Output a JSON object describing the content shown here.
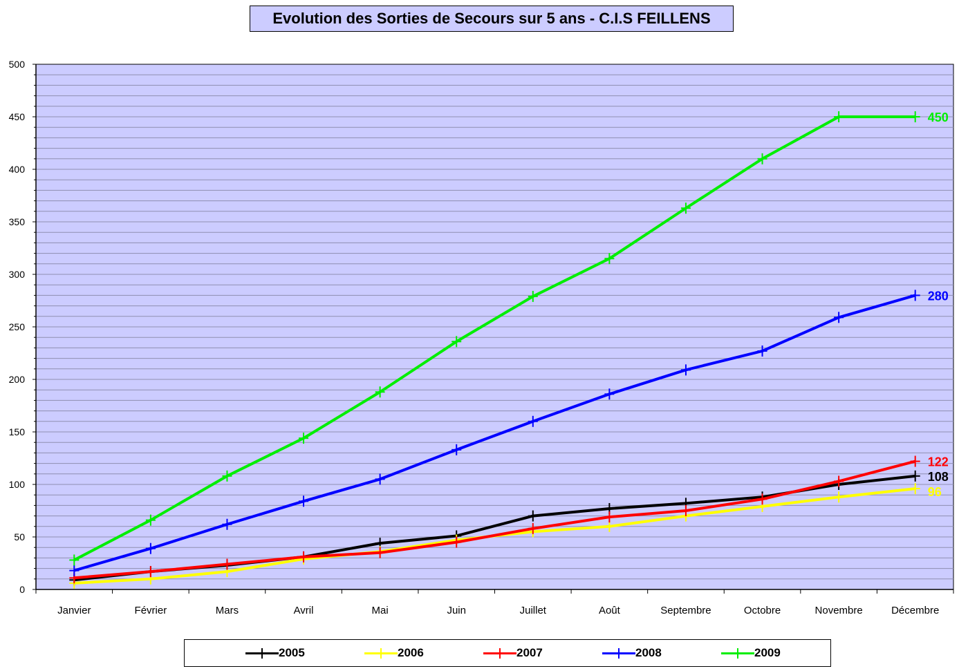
{
  "chart_data": {
    "type": "line",
    "title": "Evolution des Sorties de Secours sur 5 ans - C.I.S FEILLENS",
    "xlabel": "",
    "ylabel": "",
    "ylim": [
      0,
      500
    ],
    "y_ticks": [
      "0",
      "50",
      "100",
      "150",
      "200",
      "250",
      "300",
      "350",
      "400",
      "450",
      "500"
    ],
    "categories": [
      "Janvier",
      "Février",
      "Mars",
      "Avril",
      "Mai",
      "Juin",
      "Juillet",
      "Août",
      "Septembre",
      "Octobre",
      "Novembre",
      "Décembre"
    ],
    "grid": true,
    "legend_position": "bottom",
    "plot_background": "#ccccff",
    "series": [
      {
        "name": "2005",
        "color": "#000000",
        "values": [
          9,
          17,
          23,
          31,
          44,
          51,
          70,
          77,
          82,
          88,
          100,
          108
        ],
        "end_label": "108"
      },
      {
        "name": "2006",
        "color": "#ffff00",
        "values": [
          6,
          10,
          17,
          29,
          36,
          47,
          55,
          60,
          70,
          79,
          88,
          96
        ],
        "end_label": "96"
      },
      {
        "name": "2007",
        "color": "#ff0000",
        "values": [
          11,
          17,
          24,
          31,
          35,
          45,
          58,
          69,
          75,
          86,
          103,
          122
        ],
        "end_label": "122"
      },
      {
        "name": "2008",
        "color": "#0000ff",
        "values": [
          18,
          39,
          62,
          84,
          105,
          133,
          160,
          186,
          209,
          227,
          259,
          280
        ],
        "end_label": "280"
      },
      {
        "name": "2009",
        "color": "#00ee00",
        "values": [
          28,
          66,
          108,
          144,
          188,
          236,
          279,
          315,
          363,
          410,
          450,
          450
        ],
        "end_label": "450"
      }
    ]
  }
}
